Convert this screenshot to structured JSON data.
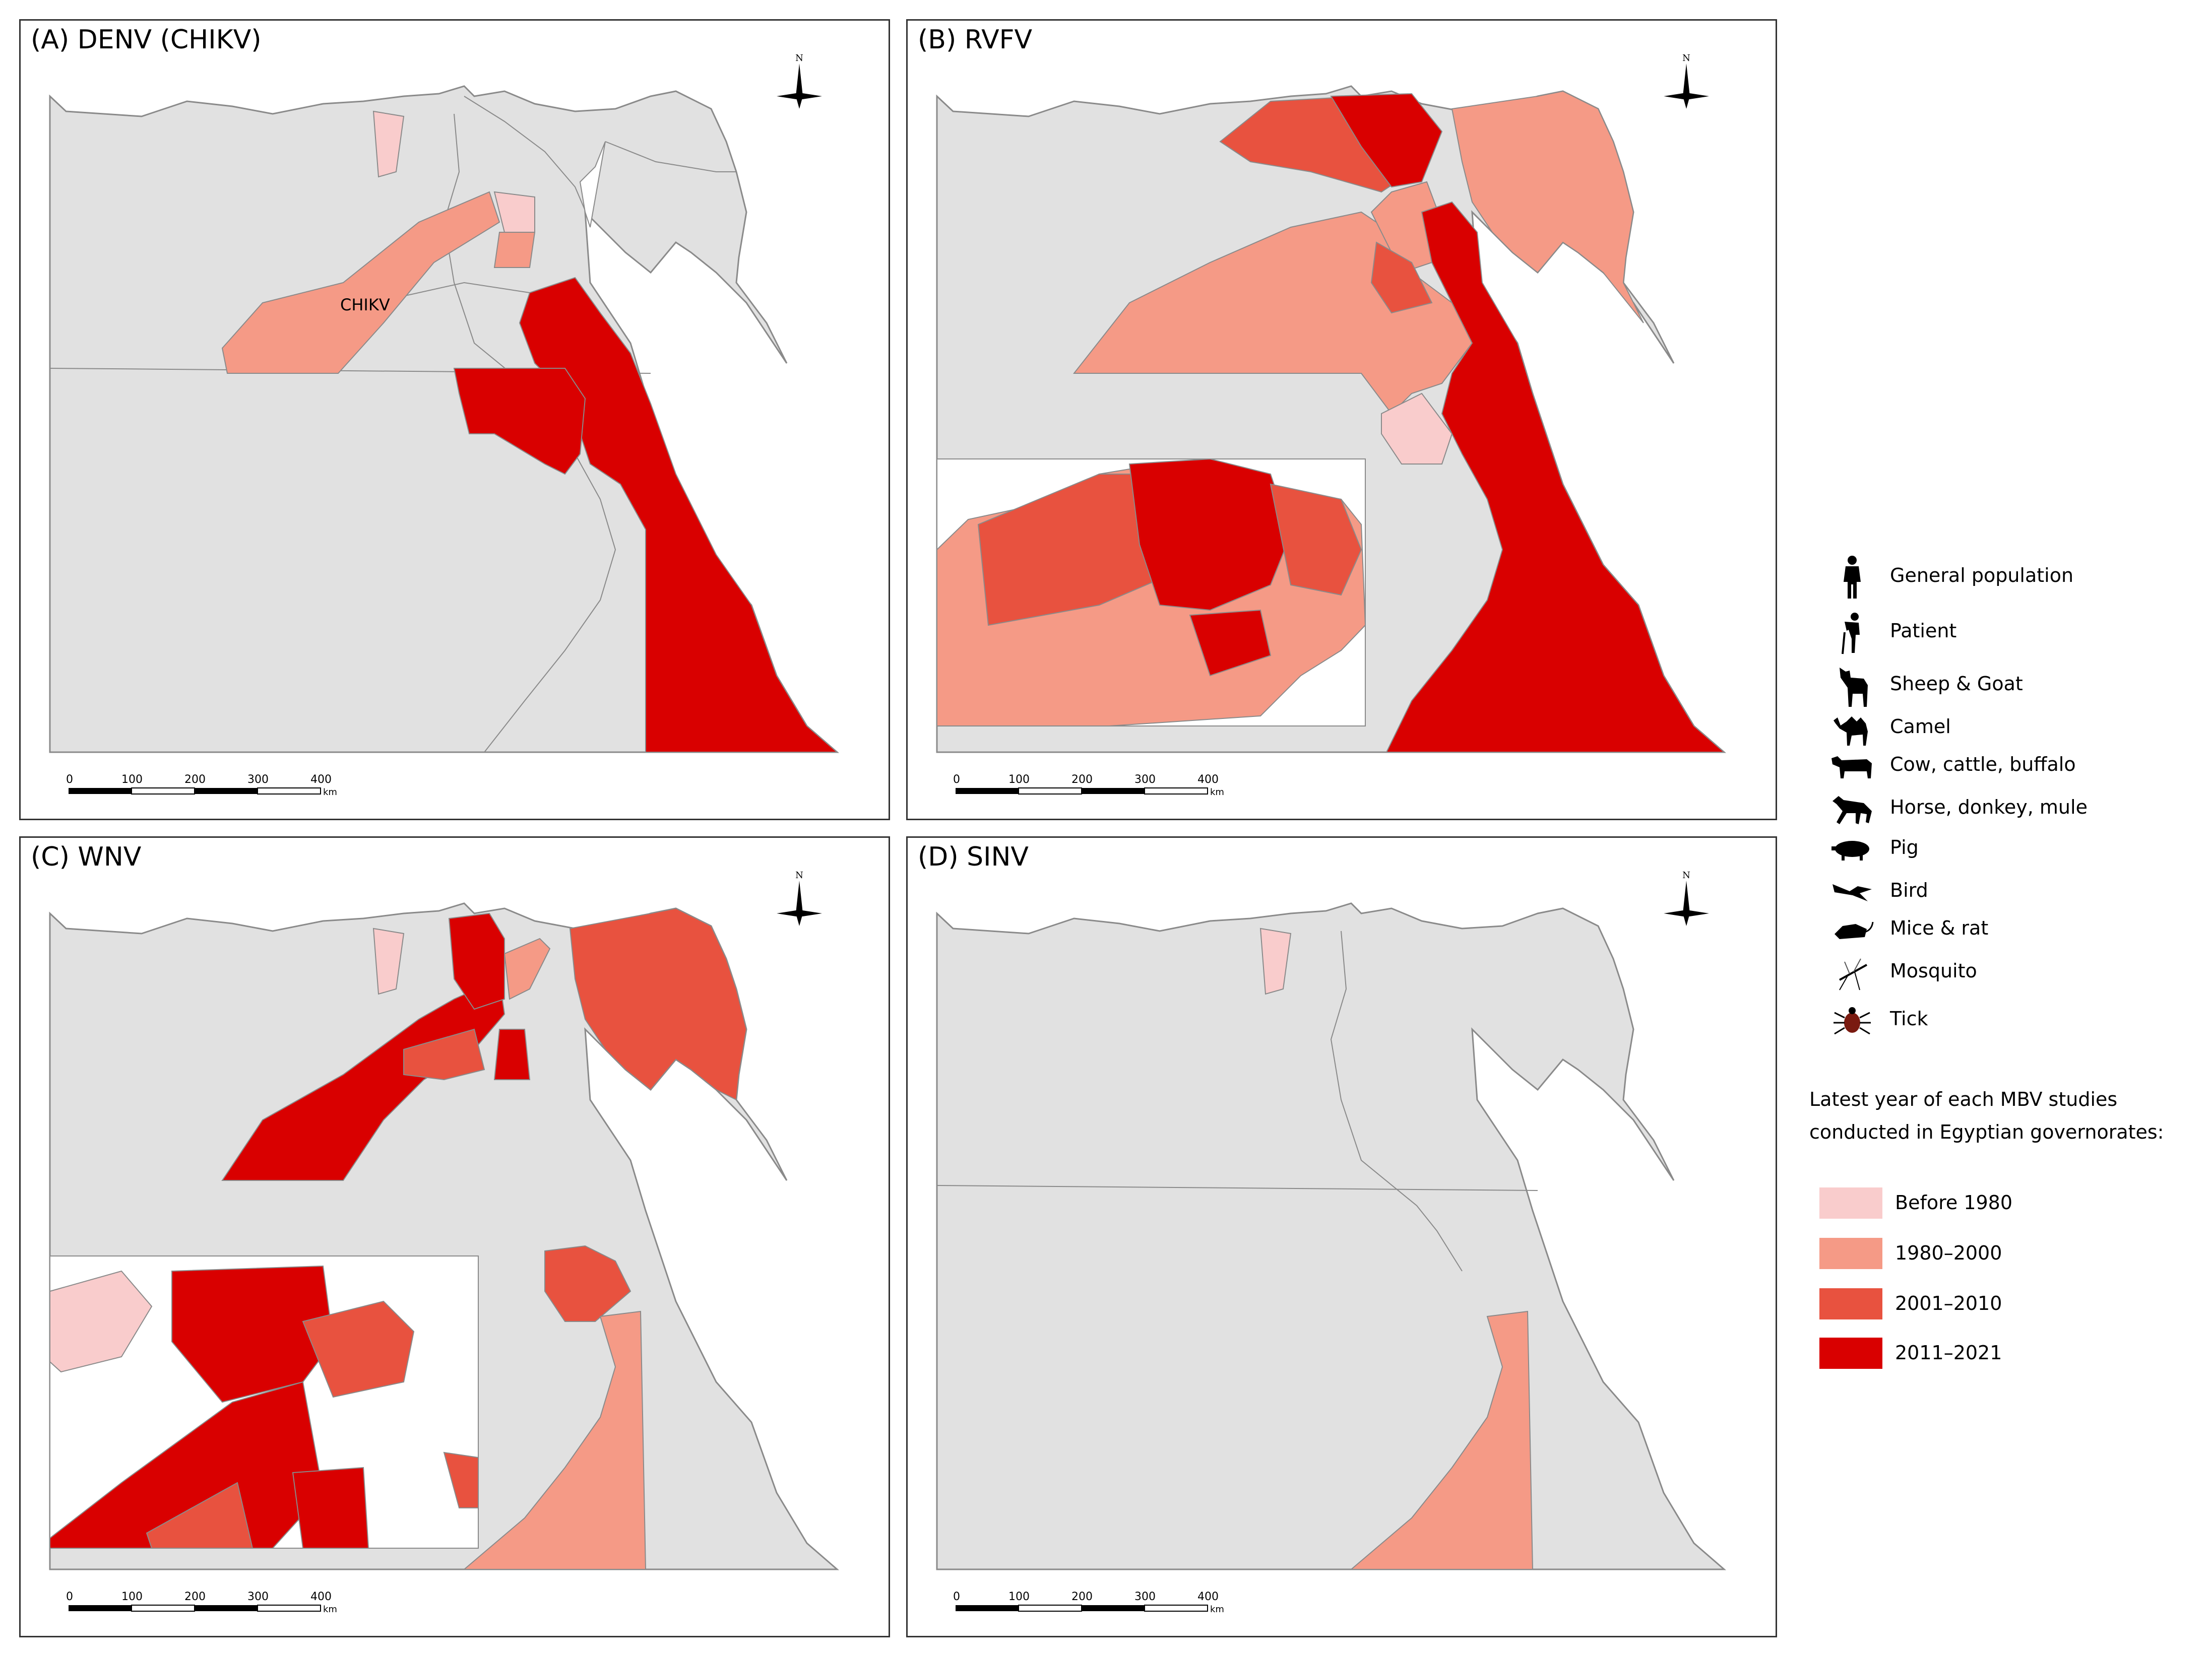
{
  "panels": [
    {
      "title": "(A) DENV (CHIKV)",
      "annotation": "CHIKV"
    },
    {
      "title": "(B) RVFV"
    },
    {
      "title": "(C) WNV"
    },
    {
      "title": "(D) SINV"
    }
  ],
  "compass_label": "N",
  "scalebar": {
    "ticks": [
      "0",
      "100",
      "200",
      "300",
      "400"
    ],
    "unit": "km"
  },
  "legend": {
    "hosts": [
      {
        "label": "General population",
        "icon": "person-icon"
      },
      {
        "label": "Patient",
        "icon": "patient-icon"
      },
      {
        "label": "Sheep & Goat",
        "icon": "sheep-goat-icon"
      },
      {
        "label": "Camel",
        "icon": "camel-icon"
      },
      {
        "label": "Cow, cattle, buffalo",
        "icon": "cow-icon"
      },
      {
        "label": "Horse, donkey, mule",
        "icon": "horse-icon"
      },
      {
        "label": "Pig",
        "icon": "pig-icon"
      },
      {
        "label": "Bird",
        "icon": "bird-icon"
      },
      {
        "label": "Mice & rat",
        "icon": "rat-icon"
      },
      {
        "label": "Mosquito",
        "icon": "mosquito-icon"
      },
      {
        "label": "Tick",
        "icon": "tick-icon"
      }
    ],
    "color_title": "Latest year of each MBV studies conducted in Egyptian governorates:",
    "classes": [
      {
        "label": "Before 1980",
        "color": "#f9cccc"
      },
      {
        "label": "1980–2000",
        "color": "#f59a86"
      },
      {
        "label": "2001–2010",
        "color": "#e8523f"
      },
      {
        "label": "2011–2021",
        "color": "#d90000"
      }
    ]
  },
  "colors": {
    "base": "#e1e1e1",
    "border": "#8a8a8a",
    "water": "#ffffff"
  }
}
